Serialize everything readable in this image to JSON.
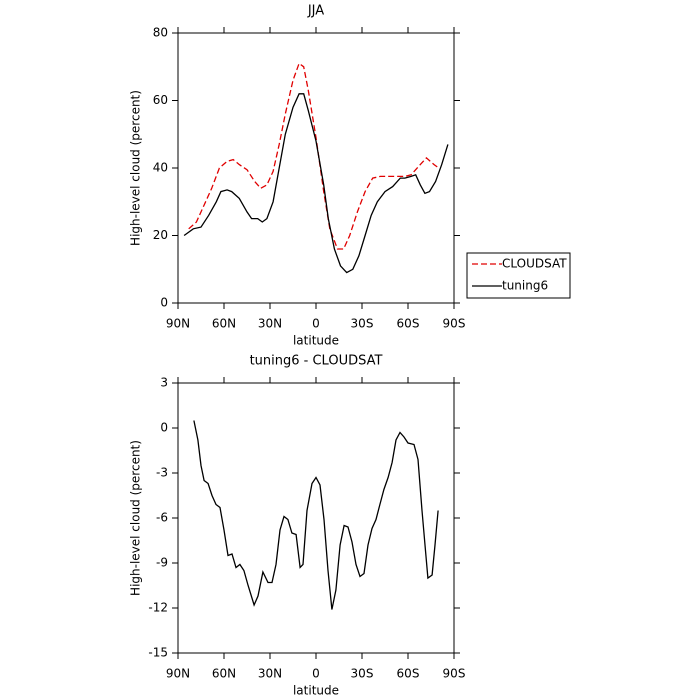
{
  "chart_data": [
    {
      "type": "line",
      "title": "JJA",
      "x_label": "latitude",
      "y_label": "High-level cloud (percent)",
      "xlim": [
        90,
        -90
      ],
      "xticks": [
        {
          "value": 90,
          "label": "90N"
        },
        {
          "value": 60,
          "label": "60N"
        },
        {
          "value": 30,
          "label": "30N"
        },
        0,
        {
          "value": -30,
          "label": "30S"
        },
        {
          "value": -60,
          "label": "60S"
        },
        {
          "value": -90,
          "label": "90S"
        }
      ],
      "ylim": [
        0,
        80
      ],
      "yticks": [
        0,
        20,
        40,
        60,
        80
      ],
      "legend": "right",
      "series": [
        {
          "name": "CLOUDSAT",
          "color": "#e00000",
          "line_style": "dashed",
          "x": [
            83,
            78,
            73,
            68,
            63,
            58,
            54,
            50,
            45,
            40,
            36,
            32,
            28,
            24,
            20,
            15,
            11,
            8,
            5,
            0,
            -5,
            -9,
            -14,
            -18,
            -22,
            -27,
            -32,
            -37,
            -42,
            -50,
            -58,
            -62,
            -67,
            -72,
            -77,
            -80
          ],
          "values": [
            22,
            24,
            29,
            34,
            40,
            42,
            42.5,
            41,
            39.5,
            36,
            34,
            35,
            39,
            47,
            56,
            66,
            71,
            70,
            63,
            49,
            33,
            22,
            16,
            16,
            20,
            27,
            33,
            37,
            37.5,
            37.5,
            37.5,
            38,
            40.5,
            43,
            41,
            40
          ]
        },
        {
          "name": "tuning6",
          "color": "#000000",
          "line_style": "solid",
          "x": [
            86,
            80,
            75,
            70,
            65,
            62,
            58,
            55,
            50,
            45,
            42,
            38,
            35,
            32,
            28,
            24,
            20,
            15,
            11,
            8,
            5,
            0,
            -5,
            -8,
            -12,
            -16,
            -20,
            -24,
            -28,
            -32,
            -36,
            -40,
            -45,
            -50,
            -55,
            -58,
            -62,
            -65,
            -68,
            -71,
            -74,
            -78,
            -82,
            -86
          ],
          "values": [
            20,
            22,
            22.5,
            26,
            30,
            33,
            33.5,
            33,
            31,
            27,
            25,
            25,
            24,
            25,
            30,
            40,
            50,
            58,
            62,
            62,
            57,
            48,
            35,
            25,
            16,
            11,
            9,
            10,
            14,
            20,
            26,
            30,
            33,
            34.5,
            37,
            37,
            37.5,
            38,
            35,
            32.5,
            33,
            36,
            41,
            47
          ]
        }
      ]
    },
    {
      "type": "line",
      "title": "tuning6 - CLOUDSAT",
      "x_label": "latitude",
      "y_label": "High-level cloud (percent)",
      "xlim": [
        90,
        -90
      ],
      "xticks": [
        {
          "value": 90,
          "label": "90N"
        },
        {
          "value": 60,
          "label": "60N"
        },
        {
          "value": 30,
          "label": "30N"
        },
        0,
        {
          "value": -30,
          "label": "30S"
        },
        {
          "value": -60,
          "label": "60S"
        },
        {
          "value": -90,
          "label": "90S"
        }
      ],
      "ylim": [
        -15,
        3
      ],
      "yticks": [
        -15,
        -12,
        -9,
        -6,
        -3,
        0,
        3
      ],
      "series": [
        {
          "color": "#000000",
          "line_style": "solid",
          "x": [
            79.6,
            77.0,
            75.0,
            73.0,
            70.4,
            67.8,
            65.2,
            62.6,
            60.0,
            57.4,
            54.8,
            52.2,
            49.6,
            47.0,
            44.3,
            40.4,
            37.8,
            34.6,
            31.3,
            28.7,
            26.1,
            23.5,
            20.9,
            18.3,
            15.7,
            13.0,
            10.4,
            8.5,
            5.9,
            2.6,
            0,
            -2.6,
            -5.2,
            -7.8,
            -10.4,
            -13.0,
            -15.7,
            -18.3,
            -20.9,
            -23.5,
            -26.1,
            -28.7,
            -31.3,
            -33.9,
            -36.5,
            -39.1,
            -41.7,
            -44.3,
            -47.0,
            -49.6,
            -52.2,
            -54.8,
            -57.4,
            -60.0,
            -63.9,
            -66.5,
            -69.1,
            -71.1,
            -73.0,
            -75.7,
            -77.6,
            -79.6
          ],
          "values": [
            0.5,
            -0.8,
            -2.5,
            -3.5,
            -3.7,
            -4.5,
            -5.1,
            -5.3,
            -6.8,
            -8.5,
            -8.4,
            -9.3,
            -9.1,
            -9.5,
            -10.5,
            -11.8,
            -11.2,
            -9.6,
            -10.3,
            -10.3,
            -9.1,
            -6.8,
            -5.9,
            -6.1,
            -7.0,
            -7.1,
            -9.3,
            -9.1,
            -5.5,
            -3.7,
            -3.3,
            -3.8,
            -6.1,
            -9.5,
            -12.1,
            -10.8,
            -7.8,
            -6.5,
            -6.6,
            -7.6,
            -9.1,
            -9.9,
            -9.7,
            -7.8,
            -6.7,
            -6.1,
            -5.1,
            -4.1,
            -3.3,
            -2.3,
            -0.8,
            -0.3,
            -0.6,
            -1.0,
            -1.1,
            -2.1,
            -5.5,
            -7.8,
            -10.0,
            -9.8,
            -7.8,
            -5.5
          ]
        }
      ]
    }
  ]
}
